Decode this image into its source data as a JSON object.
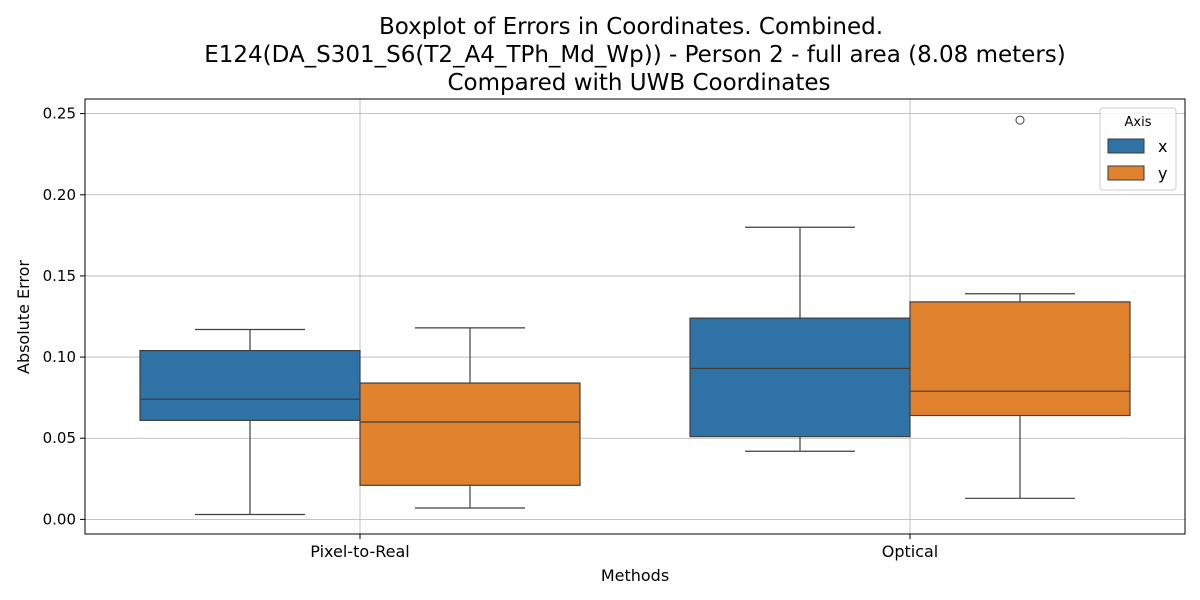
{
  "chart_data": {
    "type": "boxplot",
    "title": [
      "Boxplot of Errors in Coordinates. Combined.",
      "E124(DA_S301_S6(T2_A4_TPh_Md_Wp)) - Person 2 - full area (8.08 meters)",
      "Compared with UWB Coordinates"
    ],
    "xlabel": "Methods",
    "ylabel": "Absolute Error",
    "categories": [
      "Pixel-to-Real",
      "Optical"
    ],
    "ylim": [
      -0.009,
      0.259
    ],
    "yticks": [
      0.0,
      0.05,
      0.1,
      0.15,
      0.2,
      0.25
    ],
    "ytick_labels": [
      "0.00",
      "0.05",
      "0.10",
      "0.15",
      "0.20",
      "0.25"
    ],
    "grid": true,
    "legend": {
      "title": "Axis",
      "placement": "top-right"
    },
    "series": [
      {
        "name": "x",
        "color": "#2f72a6",
        "boxes": [
          {
            "category": "Pixel-to-Real",
            "whisker_low": 0.003,
            "q1": 0.061,
            "median": 0.074,
            "q3": 0.104,
            "whisker_high": 0.117,
            "outliers": []
          },
          {
            "category": "Optical",
            "whisker_low": 0.042,
            "q1": 0.051,
            "median": 0.093,
            "q3": 0.124,
            "whisker_high": 0.18,
            "outliers": []
          }
        ]
      },
      {
        "name": "y",
        "color": "#e0812d",
        "boxes": [
          {
            "category": "Pixel-to-Real",
            "whisker_low": 0.007,
            "q1": 0.021,
            "median": 0.06,
            "q3": 0.084,
            "whisker_high": 0.118,
            "outliers": []
          },
          {
            "category": "Optical",
            "whisker_low": 0.013,
            "q1": 0.064,
            "median": 0.079,
            "q3": 0.134,
            "whisker_high": 0.139,
            "outliers": [
              0.246
            ]
          }
        ]
      }
    ]
  }
}
